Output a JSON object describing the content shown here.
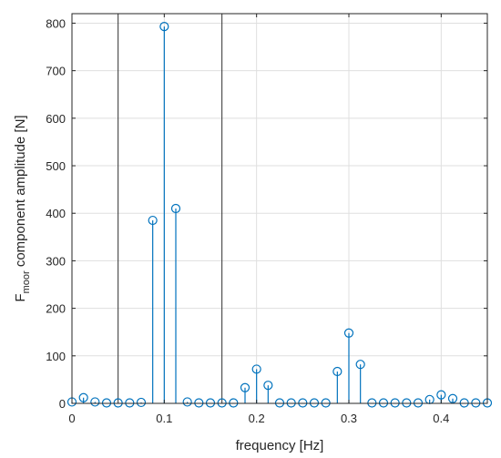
{
  "chart_data": {
    "type": "stem",
    "xlabel": "frequency [Hz]",
    "ylabel": {
      "main": "F",
      "subscript": "moor",
      "rest": " component amplitude [N]"
    },
    "xlim": [
      0,
      0.45
    ],
    "ylim": [
      0,
      820
    ],
    "xticks": [
      0,
      0.1,
      0.2,
      0.3,
      0.4
    ],
    "xtick_labels": [
      "0",
      "0.1",
      "0.2",
      "0.3",
      "0.4"
    ],
    "yticks": [
      0,
      100,
      200,
      300,
      400,
      500,
      600,
      700,
      800
    ],
    "ytick_labels": [
      "0",
      "100",
      "200",
      "300",
      "400",
      "500",
      "600",
      "700",
      "800"
    ],
    "grid": true,
    "series_color": "#0072BD",
    "vertical_lines_x": [
      0.05,
      0.1625
    ],
    "x": [
      0,
      0.0125,
      0.025,
      0.0375,
      0.05,
      0.0625,
      0.075,
      0.0875,
      0.1,
      0.1125,
      0.125,
      0.1375,
      0.15,
      0.1625,
      0.175,
      0.1875,
      0.2,
      0.2125,
      0.225,
      0.2375,
      0.25,
      0.2625,
      0.275,
      0.2875,
      0.3,
      0.3125,
      0.325,
      0.3375,
      0.35,
      0.3625,
      0.375,
      0.3875,
      0.4,
      0.4125,
      0.425,
      0.4375,
      0.45
    ],
    "values": [
      3,
      12,
      3,
      1,
      1,
      1,
      2,
      385,
      793,
      410,
      3,
      1,
      1,
      1,
      1,
      33,
      72,
      38,
      1,
      1,
      1,
      1,
      1,
      67,
      148,
      82,
      1,
      1,
      1,
      1,
      1,
      8,
      18,
      10,
      1,
      1,
      1
    ]
  }
}
